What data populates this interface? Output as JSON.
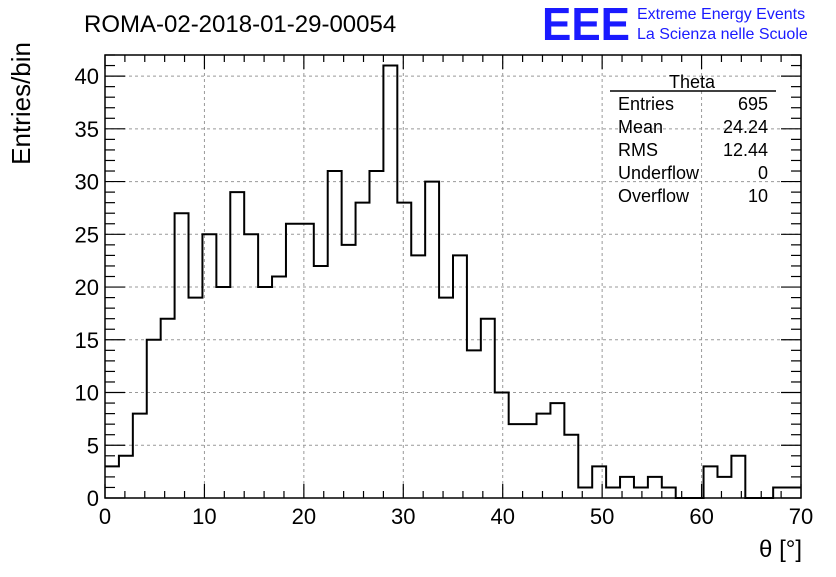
{
  "chart_data": {
    "type": "bar",
    "title": "ROMA-02-2018-01-29-00054",
    "xlabel": "θ [°]",
    "ylabel": "Entries/bin",
    "xlim": [
      0,
      70
    ],
    "ylim": [
      0,
      42
    ],
    "xticks": [
      0,
      10,
      20,
      30,
      40,
      50,
      60,
      70
    ],
    "yticks": [
      0,
      5,
      10,
      15,
      20,
      25,
      30,
      35,
      40
    ],
    "grid": true,
    "bin_width": 1.4,
    "bin_edges_start": 0,
    "values": [
      3,
      4,
      8,
      15,
      17,
      27,
      19,
      25,
      20,
      29,
      25,
      20,
      21,
      26,
      26,
      22,
      31,
      24,
      28,
      31,
      41,
      28,
      23,
      30,
      19,
      23,
      14,
      17,
      10,
      7,
      7,
      8,
      9,
      6,
      1,
      3,
      1,
      2,
      1,
      2,
      1,
      0,
      0,
      3,
      2,
      4,
      0,
      0,
      1,
      1
    ],
    "stats_box": {
      "title": "Theta",
      "rows": [
        {
          "label": "Entries",
          "value": "695"
        },
        {
          "label": "Mean",
          "value": "24.24"
        },
        {
          "label": "RMS",
          "value": "12.44"
        },
        {
          "label": "Underflow",
          "value": "0"
        },
        {
          "label": "Overflow",
          "value": "10"
        }
      ]
    }
  },
  "logo": {
    "mark": "EEE",
    "line1": "Extreme Energy Events",
    "line2": "La Scienza nelle Scuole",
    "color": "#1a1aff"
  },
  "colors": {
    "line": "#000000",
    "grid": "#999999"
  }
}
